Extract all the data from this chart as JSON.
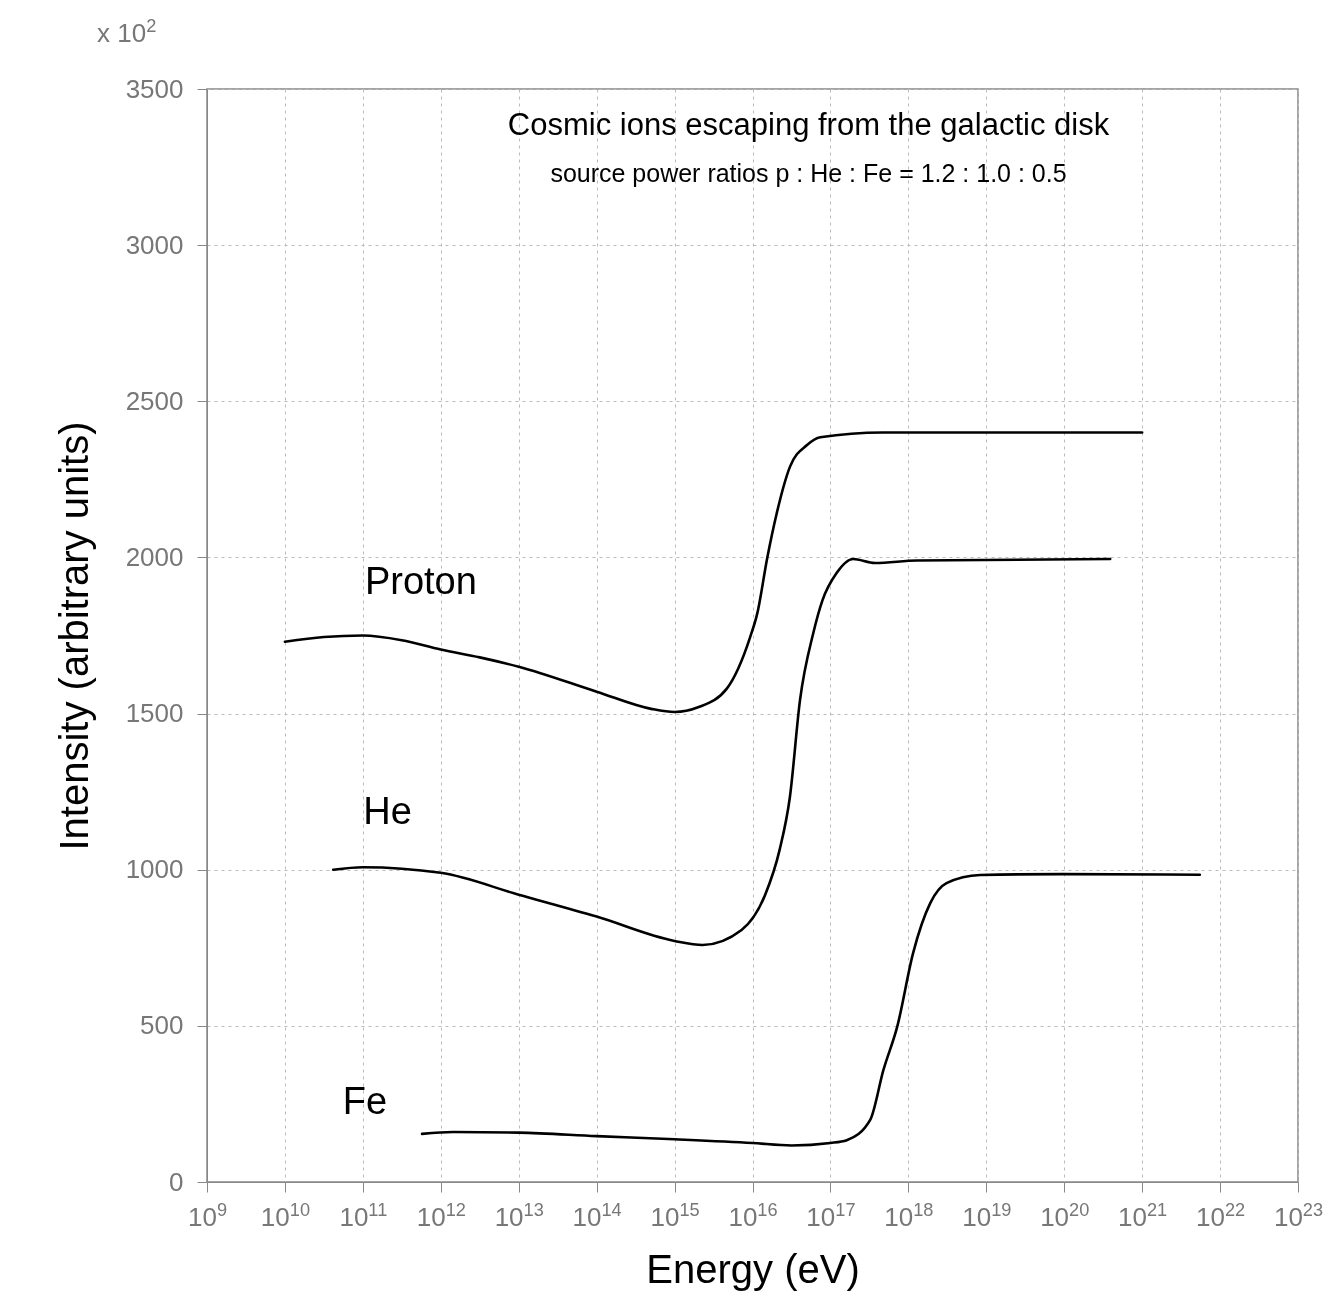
{
  "chart_data": {
    "type": "line",
    "title": "Cosmic ions escaping from the galactic disk",
    "subtitle": "source power ratios p : He : Fe = 1.2 : 1.0 : 0.5",
    "xlabel": "Energy (eV)",
    "ylabel": "Intensity (arbitrary units)",
    "annotations": [
      "x 10$^{2}$"
    ],
    "log": "x",
    "grid": true,
    "line_style": "solid",
    "marker": "none",
    "xlim": [
      1000000000.0,
      1e+23
    ],
    "xticks": [
      {
        "value": 1000000000.0,
        "label": "10$^{9}$"
      },
      {
        "value": 10000000000.0,
        "label": "10$^{10}$"
      },
      {
        "value": 100000000000.0,
        "label": "10$^{11}$"
      },
      {
        "value": 1000000000000.0,
        "label": "10$^{12}$"
      },
      {
        "value": 10000000000000.0,
        "label": "10$^{13}$"
      },
      {
        "value": 100000000000000.0,
        "label": "10$^{14}$"
      },
      {
        "value": 1000000000000000.0,
        "label": "10$^{15}$"
      },
      {
        "value": 1e+16,
        "label": "10$^{16}$"
      },
      {
        "value": 1e+17,
        "label": "10$^{17}$"
      },
      {
        "value": 1e+18,
        "label": "10$^{18}$"
      },
      {
        "value": 1e+19,
        "label": "10$^{19}$"
      },
      {
        "value": 1e+20,
        "label": "10$^{20}$"
      },
      {
        "value": 1e+21,
        "label": "10$^{21}$"
      },
      {
        "value": 1e+22,
        "label": "10$^{22}$"
      },
      {
        "value": 1e+23,
        "label": "10$^{23}$"
      }
    ],
    "ylim": [
      0,
      3500
    ],
    "yticks": [
      0,
      500,
      1000,
      1500,
      2000,
      2500,
      3000,
      3500
    ],
    "series": [
      {
        "name": "Proton",
        "color": "#000000",
        "x": [
          10000000000.0,
          31600000000.0,
          100000000000.0,
          316000000000.0,
          1000000000000.0,
          3160000000000.0,
          10000000000000.0,
          100000000000000.0,
          501000000000000.0,
          1000000000000000.0,
          2000000000000000.0,
          4680000000000000.0,
          9330000000000000.0,
          1.15e+16,
          1.55e+16,
          2.04e+16,
          3.02e+16,
          5.01e+16,
          7.41e+16,
          4.68e+17,
          1e+21
        ],
        "values": [
          1730,
          1745,
          1750,
          1735,
          1705,
          1680,
          1650,
          1570,
          1515,
          1505,
          1520,
          1580,
          1745,
          1820,
          2000,
          2140,
          2290,
          2360,
          2385,
          2400,
          2400
        ]
      },
      {
        "name": "He",
        "color": "#000000",
        "x": [
          41700000000.0,
          100000000000.0,
          1000000000000.0,
          10000000000000.0,
          100000000000000.0,
          1000000000000000.0,
          2290000000000000.0,
          7240000000000000.0,
          1.45e+16,
          2.24e+16,
          3.02e+16,
          4.07e+16,
          6.03e+16,
          7.94e+16,
          1.2e+17,
          1.95e+17,
          3.72e+17,
          1.29e+18,
          3.89e+20
        ],
        "values": [
          1000,
          1008,
          990,
          920,
          850,
          772,
          759,
          807,
          919,
          1066,
          1233,
          1543,
          1758,
          1864,
          1950,
          1995,
          1982,
          1990,
          1995
        ]
      },
      {
        "name": "Fe",
        "color": "#000000",
        "x": [
          575000000000.0,
          1450000000000.0,
          10000000000000.0,
          100000000000000.0,
          1000000000000000.0,
          1e+16,
          3.16e+16,
          1e+17,
          1.62e+17,
          3.24e+17,
          4.79e+17,
          7.24e+17,
          1.15e+18,
          1.91e+18,
          3.09e+18,
          8.32e+18,
          9.55e+19,
          5.5e+21
        ],
        "values": [
          154,
          160,
          158,
          147,
          137,
          125,
          117,
          125,
          134,
          199,
          359,
          500,
          733,
          893,
          957,
          983,
          986,
          984
        ]
      }
    ]
  }
}
